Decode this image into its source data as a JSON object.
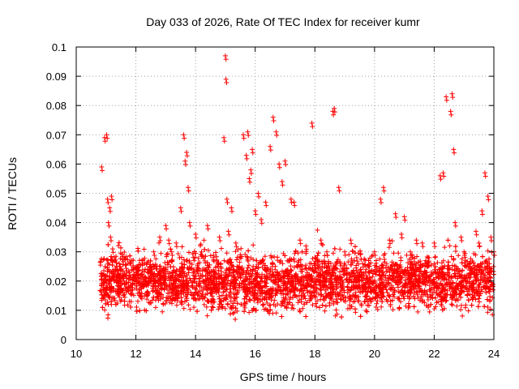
{
  "chart_data": {
    "type": "scatter",
    "title": "Day 033 of 2026, Rate Of TEC Index for receiver kumr",
    "xlabel": "GPS time / hours",
    "ylabel": "ROTI / TECUs",
    "xlim": [
      10,
      24
    ],
    "ylim": [
      0,
      0.1
    ],
    "xticks": [
      "10",
      "12",
      "14",
      "16",
      "18",
      "20",
      "22",
      "24"
    ],
    "yticks": [
      "0",
      "0.01",
      "0.02",
      "0.03",
      "0.04",
      "0.05",
      "0.06",
      "0.07",
      "0.08",
      "0.09",
      "0.1"
    ],
    "grid": true,
    "marker": "plus",
    "color": "#ff0000",
    "series": [
      {
        "name": "ROTI",
        "x": [
          10.85,
          10.95,
          11.02,
          11.05,
          11.08,
          11.12,
          11.15,
          11.18,
          11.22,
          11.28,
          11.35,
          11.45,
          11.6,
          11.8,
          12.0,
          12.2,
          12.4,
          12.6,
          12.8,
          13.0,
          13.1,
          13.2,
          13.35,
          13.5,
          13.6,
          13.65,
          13.7,
          13.75,
          13.8,
          14.0,
          14.2,
          14.4,
          14.6,
          14.8,
          14.95,
          15.0,
          15.02,
          15.05,
          15.1,
          15.2,
          15.35,
          15.5,
          15.6,
          15.7,
          15.75,
          15.8,
          15.85,
          15.9,
          16.0,
          16.1,
          16.2,
          16.35,
          16.5,
          16.6,
          16.7,
          16.8,
          16.9,
          17.0,
          17.2,
          17.3,
          17.5,
          17.7,
          17.9,
          18.0,
          18.2,
          18.4,
          18.6,
          18.65,
          18.8,
          19.0,
          19.2,
          19.4,
          19.6,
          19.8,
          20.0,
          20.2,
          20.3,
          20.5,
          20.7,
          20.9,
          21.0,
          21.2,
          21.4,
          21.6,
          21.8,
          22.0,
          22.2,
          22.3,
          22.4,
          22.55,
          22.6,
          22.65,
          22.7,
          22.9,
          23.0,
          23.2,
          23.4,
          23.5,
          23.6,
          23.7,
          23.8,
          23.9,
          24.0
        ],
        "y": [
          0.059,
          0.069,
          0.07,
          0.048,
          0.04,
          0.045,
          0.035,
          0.049,
          0.031,
          0.028,
          0.025,
          0.022,
          0.02,
          0.018,
          0.021,
          0.027,
          0.024,
          0.03,
          0.035,
          0.039,
          0.034,
          0.03,
          0.033,
          0.045,
          0.07,
          0.061,
          0.064,
          0.052,
          0.04,
          0.036,
          0.03,
          0.039,
          0.028,
          0.035,
          0.069,
          0.097,
          0.089,
          0.048,
          0.037,
          0.045,
          0.033,
          0.029,
          0.07,
          0.063,
          0.071,
          0.055,
          0.058,
          0.065,
          0.044,
          0.05,
          0.041,
          0.047,
          0.066,
          0.076,
          0.071,
          0.06,
          0.054,
          0.061,
          0.048,
          0.047,
          0.034,
          0.032,
          0.074,
          0.028,
          0.034,
          0.03,
          0.078,
          0.079,
          0.052,
          0.03,
          0.034,
          0.028,
          0.026,
          0.027,
          0.03,
          0.048,
          0.052,
          0.034,
          0.043,
          0.036,
          0.042,
          0.03,
          0.034,
          0.033,
          0.028,
          0.033,
          0.056,
          0.057,
          0.083,
          0.078,
          0.084,
          0.065,
          0.04,
          0.035,
          0.03,
          0.025,
          0.037,
          0.033,
          0.044,
          0.057,
          0.049,
          0.035,
          0.03
        ]
      }
    ],
    "background_band": {
      "x_range": [
        10.8,
        24.0
      ],
      "typical_low": 0.006,
      "typical_high": 0.028,
      "point_count": 4200
    }
  }
}
